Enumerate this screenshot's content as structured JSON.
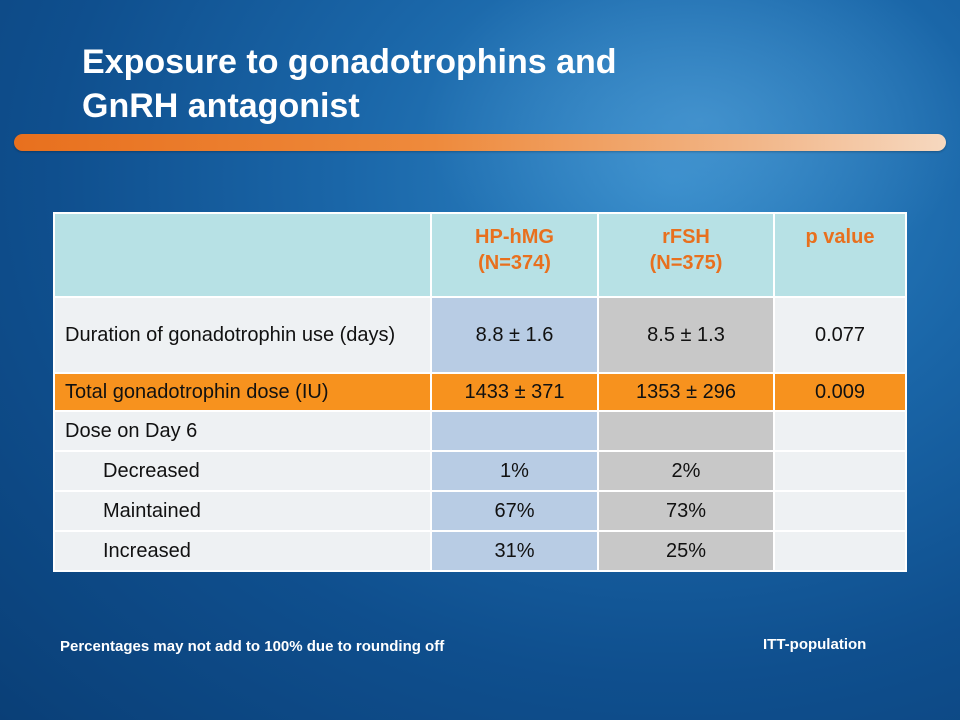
{
  "slide": {
    "title_line1": "Exposure to gonadotrophins and",
    "title_line2": "GnRH antagonist",
    "accent_color": "#e8701e"
  },
  "table": {
    "headers": [
      {
        "line1": "",
        "line2": ""
      },
      {
        "line1": "HP-hMG",
        "line2": "(N=374)"
      },
      {
        "line1": "rFSH",
        "line2": "(N=375)"
      },
      {
        "line1": "p value",
        "line2": ""
      }
    ],
    "rows": [
      {
        "label": "Duration of gonadotrophin use (days)",
        "hphmg": "8.8 ± 1.6",
        "rfsh": "8.5 ± 1.3",
        "p": "0.077"
      },
      {
        "label": "Total gonadotrophin dose (IU)",
        "hphmg": "1433 ± 371",
        "rfsh": "1353 ± 296",
        "p": "0.009"
      },
      {
        "label": "Dose on Day 6",
        "hphmg": "",
        "rfsh": "",
        "p": ""
      },
      {
        "label": "Decreased",
        "hphmg": "1%",
        "rfsh": "2%",
        "p": ""
      },
      {
        "label": "Maintained",
        "hphmg": "67%",
        "rfsh": "73%",
        "p": ""
      },
      {
        "label": "Increased",
        "hphmg": "31%",
        "rfsh": "25%",
        "p": ""
      }
    ]
  },
  "footer": {
    "note": "Percentages may not add to 100% due to rounding off",
    "population": "ITT-population"
  }
}
